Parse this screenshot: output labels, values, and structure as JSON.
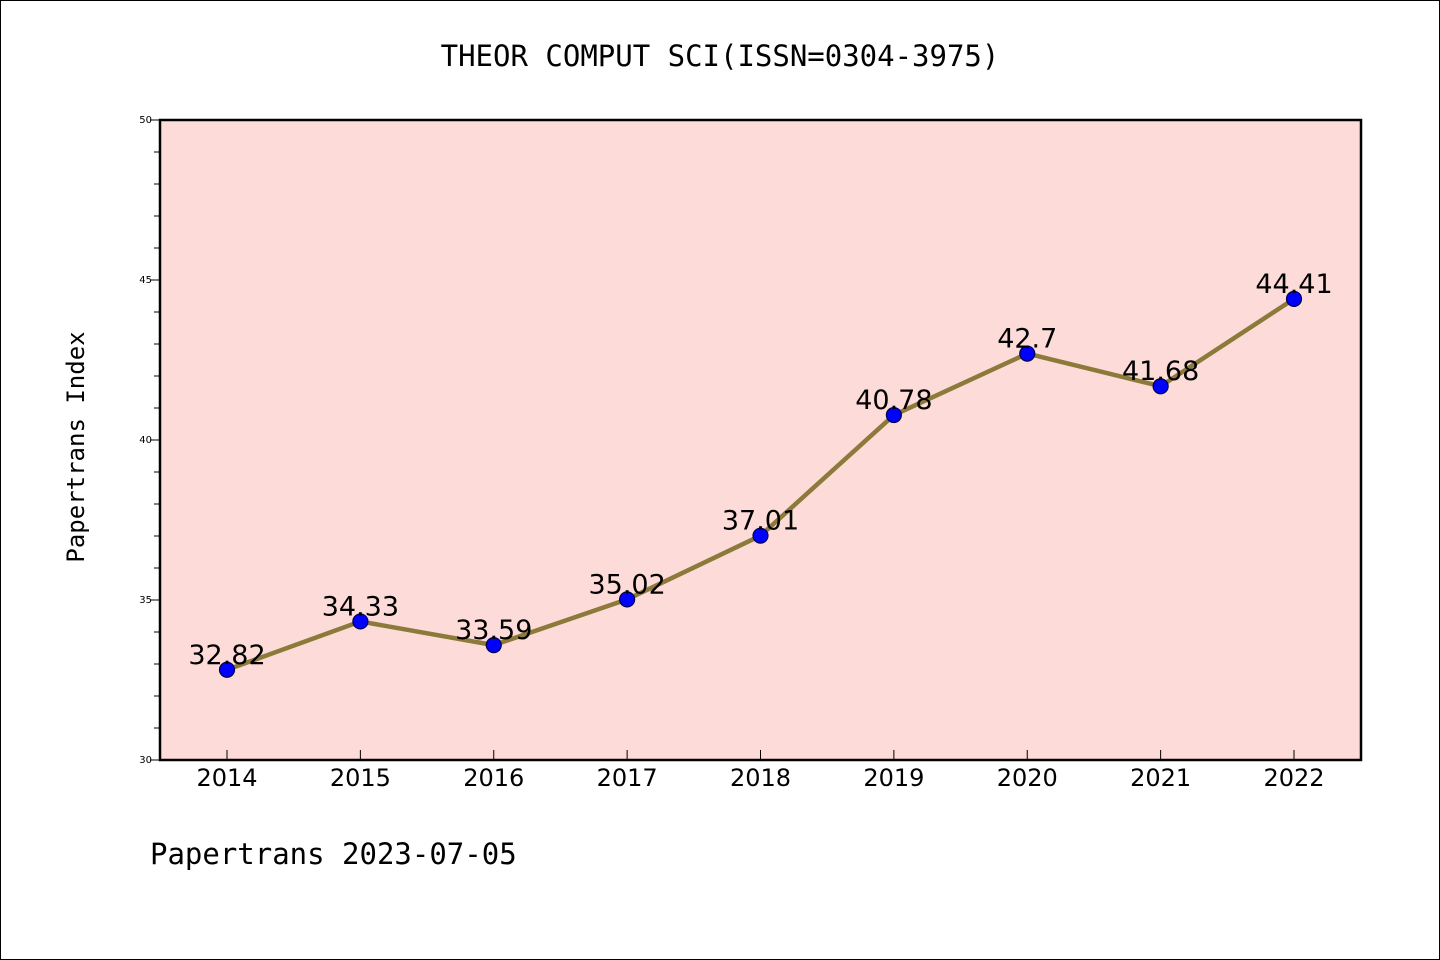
{
  "chart_data": {
    "type": "line",
    "title": "THEOR COMPUT SCI(ISSN=0304-3975)",
    "ylabel": "Papertrans Index",
    "xlabel": "",
    "footer": "Papertrans 2023-07-05",
    "categories": [
      "2014",
      "2015",
      "2016",
      "2017",
      "2018",
      "2019",
      "2020",
      "2021",
      "2022"
    ],
    "series": [
      {
        "values": [
          32.82,
          34.33,
          33.59,
          35.02,
          37.01,
          40.78,
          42.7,
          41.68,
          44.41
        ]
      }
    ],
    "data_labels": [
      "32.82",
      "34.33",
      "33.59",
      "35.02",
      "37.01",
      "40.78",
      "42.7",
      "41.68",
      "44.41"
    ],
    "ylim": [
      30,
      50
    ],
    "yticks": [
      "30",
      "35",
      "40",
      "45",
      "50"
    ],
    "grid": false,
    "colors": {
      "plot_background": "#fddbd8",
      "line": "#8c7a3a",
      "marker": "#0000ff",
      "axis": "#000000"
    }
  }
}
